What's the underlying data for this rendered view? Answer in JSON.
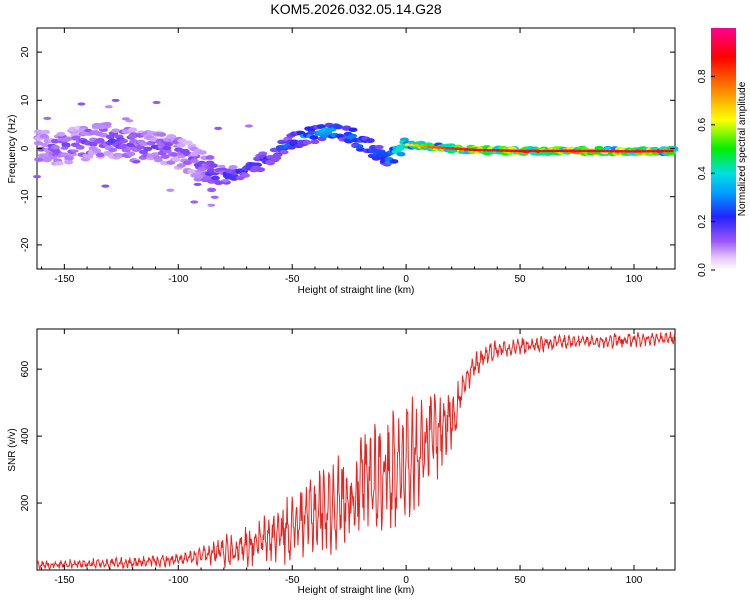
{
  "title": "KOM5.2026.032.05.14.G28",
  "colorbar": {
    "label": "Normalized spectral amplitude",
    "ticks": [
      0.0,
      0.2,
      0.4,
      0.6,
      0.8
    ],
    "tick_labels": [
      "0.0",
      "0.2",
      "0.4",
      "0.6",
      "0.8"
    ]
  },
  "chart_data": [
    {
      "type": "heatmap",
      "name": "spectrogram",
      "xlabel": "Height of straight line (km)",
      "ylabel": "Frequency (Hz)",
      "xlim": [
        -162,
        118
      ],
      "ylim": [
        -25,
        25
      ],
      "x_ticks": [
        -150,
        -100,
        -50,
        0,
        50,
        100
      ],
      "x_tick_labels": [
        "-150",
        "-100",
        "-50",
        "0",
        "50",
        "100"
      ],
      "y_ticks": [
        -20,
        -10,
        0,
        10,
        20
      ],
      "y_tick_labels": [
        "-20",
        "-10",
        "0",
        "10",
        "20"
      ],
      "ridge": {
        "x": [
          -162,
          -150,
          -140,
          -130,
          -120,
          -110,
          -100,
          -95,
          -90,
          -85,
          -80,
          -75,
          -70,
          -65,
          -60,
          -55,
          -50,
          -45,
          -40,
          -35,
          -30,
          -25,
          -22,
          -18,
          -15,
          -12,
          -10,
          -8,
          -5,
          -2,
          0,
          5,
          10,
          20,
          30,
          50,
          80,
          100,
          118
        ],
        "y": [
          0,
          0.5,
          1.2,
          1.8,
          0.8,
          0.3,
          -0.5,
          -2,
          -4,
          -5.5,
          -6,
          -5,
          -4,
          -3,
          -1.5,
          0,
          1.5,
          2.5,
          3,
          3.5,
          3.6,
          3,
          1.5,
          0.5,
          -0.3,
          -1.2,
          -1.8,
          -2,
          -0.8,
          0.4,
          0.8,
          0.6,
          0.3,
          0,
          -0.3,
          -0.5,
          -0.5,
          -0.6,
          -0.5
        ],
        "amplitude": [
          0.15,
          0.16,
          0.17,
          0.18,
          0.17,
          0.16,
          0.15,
          0.16,
          0.18,
          0.22,
          0.25,
          0.24,
          0.23,
          0.24,
          0.26,
          0.28,
          0.33,
          0.36,
          0.38,
          0.4,
          0.4,
          0.38,
          0.36,
          0.37,
          0.36,
          0.38,
          0.4,
          0.42,
          0.45,
          0.55,
          0.62,
          0.7,
          0.78,
          0.85,
          0.88,
          0.9,
          0.92,
          0.92,
          0.9
        ]
      }
    },
    {
      "type": "line",
      "name": "snr",
      "xlabel": "Height of straight line (km)",
      "ylabel": "SNR (v/v)",
      "xlim": [
        -162,
        118
      ],
      "ylim": [
        0,
        720
      ],
      "x_ticks": [
        -150,
        -100,
        -50,
        0,
        50,
        100
      ],
      "x_tick_labels": [
        "-150",
        "-100",
        "-50",
        "0",
        "50",
        "100"
      ],
      "y_ticks": [
        200,
        400,
        600
      ],
      "y_tick_labels": [
        "200",
        "400",
        "600"
      ],
      "color": "#e8231f",
      "envelope": {
        "x": [
          -162,
          -140,
          -120,
          -100,
          -90,
          -85,
          -80,
          -75,
          -70,
          -65,
          -60,
          -55,
          -50,
          -45,
          -40,
          -35,
          -30,
          -25,
          -20,
          -15,
          -10,
          -5,
          0,
          5,
          10,
          15,
          20,
          25,
          30,
          35,
          40,
          50,
          60,
          70,
          80,
          90,
          100,
          110,
          118
        ],
        "mean": [
          15,
          18,
          22,
          30,
          40,
          50,
          60,
          65,
          75,
          80,
          95,
          110,
          130,
          150,
          170,
          190,
          200,
          220,
          250,
          270,
          290,
          310,
          340,
          360,
          390,
          420,
          460,
          540,
          610,
          645,
          660,
          668,
          675,
          680,
          682,
          685,
          688,
          690,
          692
        ],
        "spread": [
          10,
          12,
          14,
          16,
          20,
          30,
          40,
          45,
          50,
          55,
          60,
          70,
          80,
          85,
          100,
          110,
          110,
          120,
          130,
          140,
          150,
          150,
          140,
          130,
          120,
          100,
          80,
          50,
          30,
          25,
          22,
          20,
          20,
          20,
          18,
          18,
          18,
          16,
          16
        ]
      }
    }
  ]
}
